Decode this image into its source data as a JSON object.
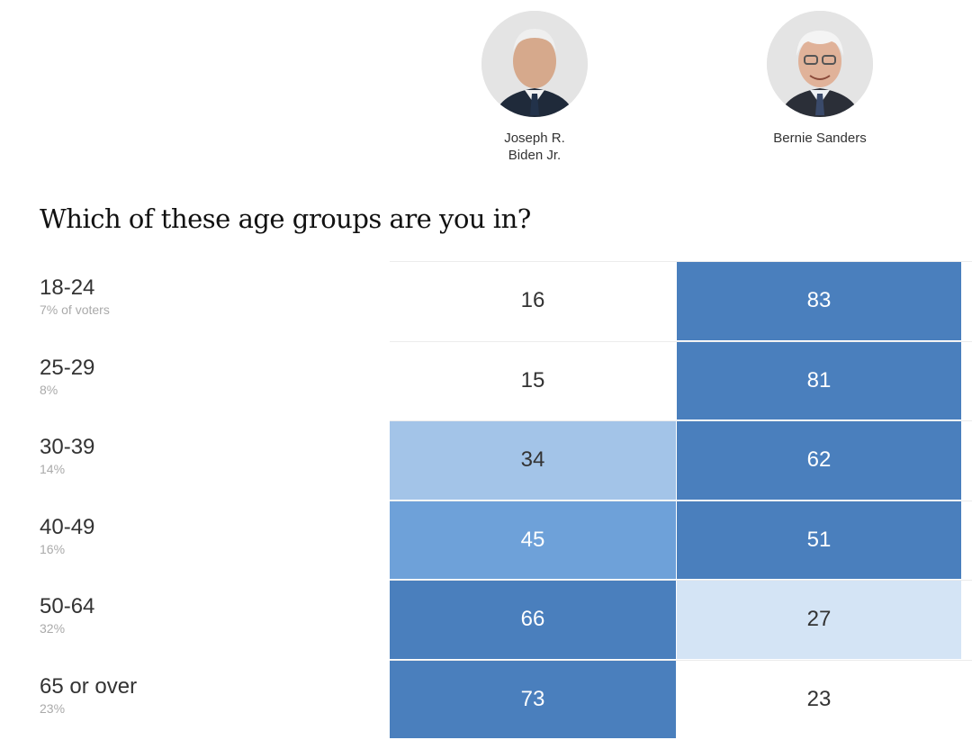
{
  "candidates": [
    {
      "name": "Joseph R.\nBiden Jr."
    },
    {
      "name": "Bernie Sanders"
    }
  ],
  "question": "Which of these age groups are you in?",
  "colors": {
    "scale": [
      "#ffffff",
      "#d4e4f5",
      "#a3c4e8",
      "#6ea1d9",
      "#4a7fbd"
    ],
    "text_dark": "#333333",
    "text_light": "#ffffff"
  },
  "chart_data": {
    "type": "table",
    "title": "Which of these age groups are you in?",
    "columns": [
      "Joseph R. Biden Jr.",
      "Bernie Sanders"
    ],
    "rows": [
      {
        "group": "18-24",
        "share": "7% of voters",
        "values": [
          16,
          83
        ]
      },
      {
        "group": "25-29",
        "share": "8%",
        "values": [
          15,
          81
        ]
      },
      {
        "group": "30-39",
        "share": "14%",
        "values": [
          34,
          62
        ]
      },
      {
        "group": "40-49",
        "share": "16%",
        "values": [
          45,
          51
        ]
      },
      {
        "group": "50-64",
        "share": "32%",
        "values": [
          66,
          27
        ]
      },
      {
        "group": "65 or over",
        "share": "23%",
        "values": [
          73,
          23
        ]
      }
    ]
  }
}
